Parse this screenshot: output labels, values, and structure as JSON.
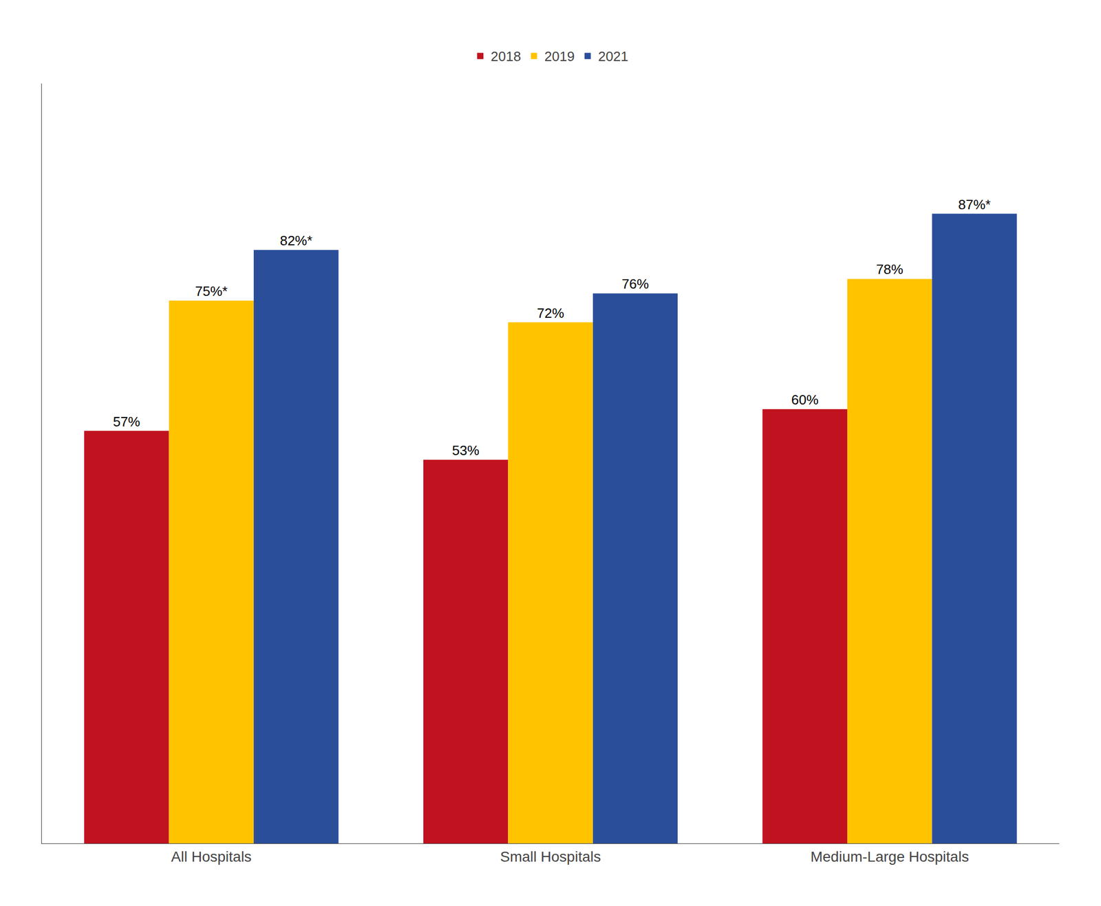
{
  "chart_data": {
    "type": "bar",
    "categories": [
      "All Hospitals",
      "Small Hospitals",
      "Medium-Large Hospitals"
    ],
    "series": [
      {
        "name": "2018",
        "color": "#C1121F",
        "values": [
          57,
          53,
          60
        ],
        "value_labels": [
          "57%",
          "53%",
          "60%"
        ]
      },
      {
        "name": "2019",
        "color": "#FFC300",
        "values": [
          75,
          72,
          78
        ],
        "value_labels": [
          "75%*",
          "72%",
          "78%"
        ]
      },
      {
        "name": "2021",
        "color": "#2B4E9B",
        "values": [
          82,
          76,
          87
        ],
        "value_labels": [
          "82%*",
          "76%",
          "87%*"
        ]
      }
    ],
    "ylim": [
      0,
      105
    ],
    "grid": false,
    "legend": "top",
    "data_labels": true,
    "tick_labels": "x"
  }
}
